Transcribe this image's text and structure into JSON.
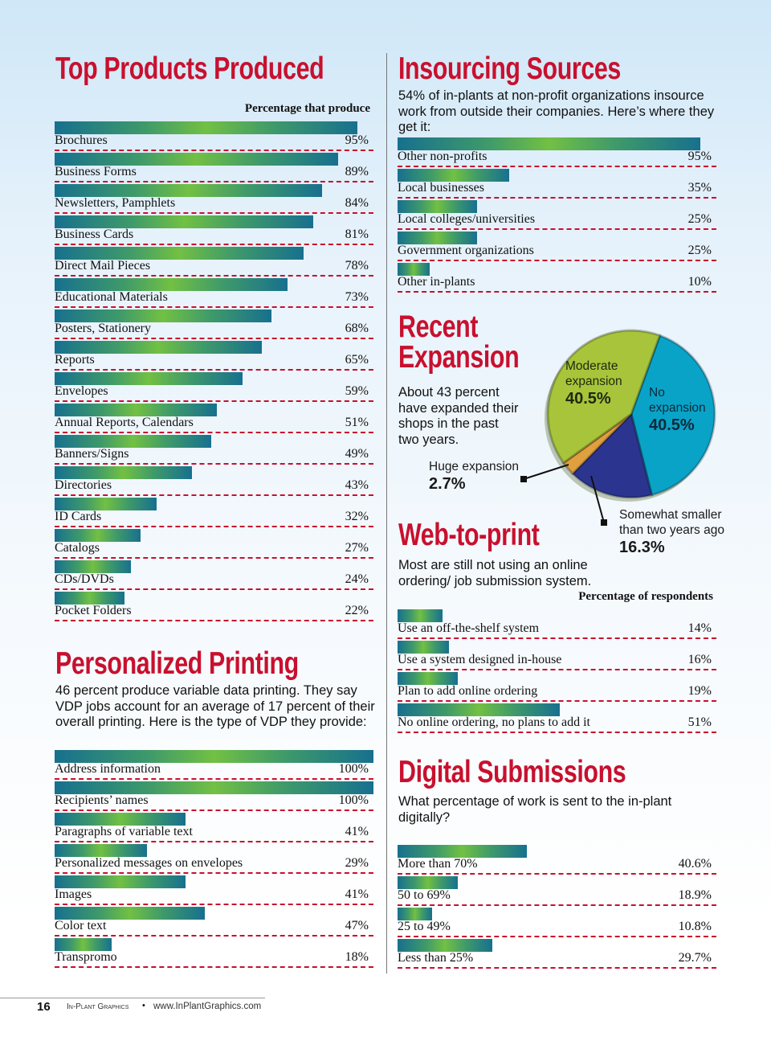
{
  "top_products": {
    "title": "Top Products Produced",
    "column_header": "Percentage that produce",
    "rows": [
      {
        "label": "Brochures",
        "value": 95
      },
      {
        "label": "Business Forms",
        "value": 89
      },
      {
        "label": "Newsletters, Pamphlets",
        "value": 84
      },
      {
        "label": "Business Cards",
        "value": 81
      },
      {
        "label": "Direct Mail Pieces",
        "value": 78
      },
      {
        "label": "Educational Materials",
        "value": 73
      },
      {
        "label": "Posters, Stationery",
        "value": 68
      },
      {
        "label": "Reports",
        "value": 65
      },
      {
        "label": "Envelopes",
        "value": 59
      },
      {
        "label": "Annual Reports, Calendars",
        "value": 51
      },
      {
        "label": "Banners/Signs",
        "value": 49
      },
      {
        "label": "Directories",
        "value": 43
      },
      {
        "label": "ID Cards",
        "value": 32
      },
      {
        "label": "Catalogs",
        "value": 27
      },
      {
        "label": "CDs/DVDs",
        "value": 24
      },
      {
        "label": "Pocket Folders",
        "value": 22
      }
    ]
  },
  "personalized": {
    "title": "Personalized Printing",
    "intro": "46 percent produce variable data printing. They say VDP jobs account for an average of 17 percent of their overall printing. Here is the type of VDP they provide:",
    "rows": [
      {
        "label": "Address information",
        "value": 100
      },
      {
        "label": "Recipients’ names",
        "value": 100
      },
      {
        "label": "Paragraphs of variable text",
        "value": 41
      },
      {
        "label": "Personalized messages on envelopes",
        "value": 29
      },
      {
        "label": "Images",
        "value": 41
      },
      {
        "label": "Color text",
        "value": 47
      },
      {
        "label": "Transpromo",
        "value": 18
      }
    ]
  },
  "insourcing": {
    "title": "Insourcing Sources",
    "intro": "54% of in-plants at non-profit organizations insource work from outside their companies. Here’s where they get it:",
    "rows": [
      {
        "label": "Other non-profits",
        "value": 95
      },
      {
        "label": "Local businesses",
        "value": 35
      },
      {
        "label": "Local colleges/universities",
        "value": 25
      },
      {
        "label": "Government organizations",
        "value": 25
      },
      {
        "label": "Other in-plants",
        "value": 10
      }
    ]
  },
  "expansion": {
    "title_line1": "Recent",
    "title_line2": "Expansion",
    "intro": "About 43 percent have expanded their shops in the past two years."
  },
  "web_to_print": {
    "title": "Web-to-print",
    "intro": "Most are still not using an online ordering/ job submission system.",
    "column_header": "Percentage of respondents",
    "rows": [
      {
        "label": "Use an off-the-shelf system",
        "value": 14
      },
      {
        "label": "Use a system designed in-house",
        "value": 16
      },
      {
        "label": "Plan to add online ordering",
        "value": 19
      },
      {
        "label": "No online ordering, no plans to add it",
        "value": 51
      }
    ]
  },
  "digital": {
    "title": "Digital Submissions",
    "intro": "What percentage of work is sent to the in-plant digitally?",
    "rows": [
      {
        "label": "More than 70%",
        "value": 40.6
      },
      {
        "label": "50 to 69%",
        "value": 18.9
      },
      {
        "label": "25 to 49%",
        "value": 10.8
      },
      {
        "label": "Less than 25%",
        "value": 29.7
      }
    ]
  },
  "chart_data": {
    "type": "pie",
    "title": "Recent Expansion",
    "slices": [
      {
        "name": "No expansion",
        "label_line1": "No",
        "label_line2": "expansion",
        "value": 40.5,
        "color": "#0aa3c8"
      },
      {
        "name": "Somewhat smaller than two years ago",
        "label_line1": "Somewhat smaller",
        "label_line2": "than two years ago",
        "value": 16.3,
        "color": "#2b3590"
      },
      {
        "name": "Huge expansion",
        "label_line1": "Huge expansion",
        "value": 2.7,
        "color": "#e0a040"
      },
      {
        "name": "Moderate expansion",
        "label_line1": "Moderate",
        "label_line2": "expansion",
        "value": 40.5,
        "color": "#a8c43a"
      }
    ]
  },
  "footer": {
    "page": "16",
    "publication": "In-Plant Graphics",
    "bullet": "•",
    "url": "www.InPlantGraphics.com"
  }
}
